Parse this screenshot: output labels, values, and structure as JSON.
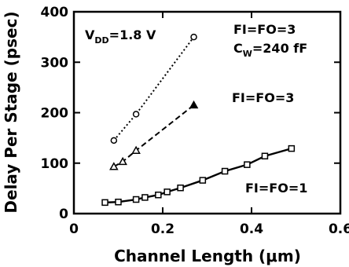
{
  "chart_data": {
    "type": "line",
    "xlabel": "Channel Length (μm)",
    "ylabel": "Delay Per Stage (psec)",
    "xlim": [
      0,
      0.6
    ],
    "ylim": [
      0,
      400
    ],
    "xticks": [
      0,
      0.2,
      0.4,
      0.6
    ],
    "xtick_labels": [
      "0",
      "0.2",
      "0.4",
      "0.6"
    ],
    "yticks": [
      0,
      100,
      200,
      300,
      400
    ],
    "ytick_labels": [
      "0",
      "100",
      "200",
      "300",
      "400"
    ],
    "grid": false,
    "series": [
      {
        "name": "FI=FO=3 C_W=240 fF",
        "line": "dotted",
        "marker": "circle",
        "x": [
          0.09,
          0.14,
          0.27
        ],
        "y": [
          145,
          197,
          350
        ]
      },
      {
        "name": "FI=FO=3",
        "line": "dashed",
        "marker": "triangle",
        "x": [
          0.09,
          0.11,
          0.14,
          0.27
        ],
        "y": [
          93,
          103,
          125,
          215
        ]
      },
      {
        "name": "FI=FO=1",
        "line": "solid",
        "marker": "square",
        "x": [
          0.07,
          0.1,
          0.14,
          0.16,
          0.19,
          0.21,
          0.24,
          0.29,
          0.34,
          0.39,
          0.43,
          0.49
        ],
        "y": [
          22,
          23,
          28,
          32,
          37,
          43,
          51,
          66,
          84,
          97,
          114,
          129
        ]
      }
    ],
    "annotations": {
      "vdd": {
        "main": "V",
        "sub": "DD",
        "rest": "=1.8 V"
      },
      "dotted_line1": "FI=FO=3",
      "dotted_line2": {
        "main": "C",
        "sub": "W",
        "rest": "=240 fF"
      },
      "dashed": "FI=FO=3",
      "solid": "FI=FO=1"
    }
  }
}
